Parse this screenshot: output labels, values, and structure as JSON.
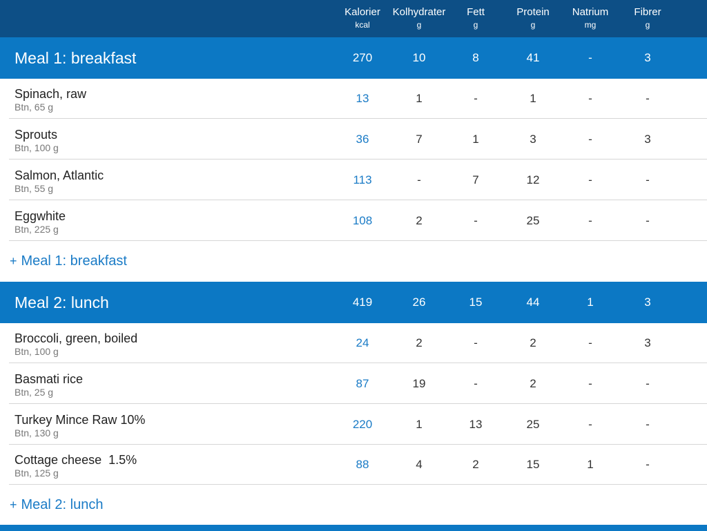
{
  "columns": [
    {
      "name": "Kalorier",
      "unit": "kcal"
    },
    {
      "name": "Kolhydrater",
      "unit": "g"
    },
    {
      "name": "Fett",
      "unit": "g"
    },
    {
      "name": "Protein",
      "unit": "g"
    },
    {
      "name": "Natrium",
      "unit": "mg"
    },
    {
      "name": "Fibrer",
      "unit": "g"
    }
  ],
  "meals": [
    {
      "title": "Meal 1: breakfast",
      "totals": [
        "270",
        "10",
        "8",
        "41",
        "-",
        "3"
      ],
      "foods": [
        {
          "name": "Spinach, raw",
          "portion": "Btn, 65 g",
          "values": [
            "13",
            "1",
            "-",
            "1",
            "-",
            "-"
          ]
        },
        {
          "name": "Sprouts",
          "portion": "Btn, 100 g",
          "values": [
            "36",
            "7",
            "1",
            "3",
            "-",
            "3"
          ]
        },
        {
          "name": "Salmon, Atlantic",
          "portion": "Btn, 55 g",
          "values": [
            "113",
            "-",
            "7",
            "12",
            "-",
            "-"
          ]
        },
        {
          "name": "Eggwhite",
          "portion": "Btn, 225 g",
          "values": [
            "108",
            "2",
            "-",
            "25",
            "-",
            "-"
          ]
        }
      ],
      "add_label": "Meal 1: breakfast"
    },
    {
      "title": "Meal 2: lunch",
      "totals": [
        "419",
        "26",
        "15",
        "44",
        "1",
        "3"
      ],
      "foods": [
        {
          "name": "Broccoli, green, boiled",
          "portion": "Btn, 100 g",
          "values": [
            "24",
            "2",
            "-",
            "2",
            "-",
            "3"
          ]
        },
        {
          "name": "Basmati rice",
          "portion": "Btn, 25 g",
          "values": [
            "87",
            "19",
            "-",
            "2",
            "-",
            "-"
          ]
        },
        {
          "name": "Turkey Mince Raw 10%",
          "portion": "Btn, 130 g",
          "values": [
            "220",
            "1",
            "13",
            "25",
            "-",
            "-"
          ]
        },
        {
          "name": "Cottage cheese  1.5%",
          "portion": "Btn, 125 g",
          "values": [
            "88",
            "4",
            "2",
            "15",
            "1",
            "-"
          ]
        }
      ],
      "add_label": "Meal 2: lunch"
    }
  ],
  "add_prefix": "+",
  "colors": {
    "header": "#0d4f86",
    "meal_bar": "#0c78c4",
    "link": "#1a7bc6"
  }
}
